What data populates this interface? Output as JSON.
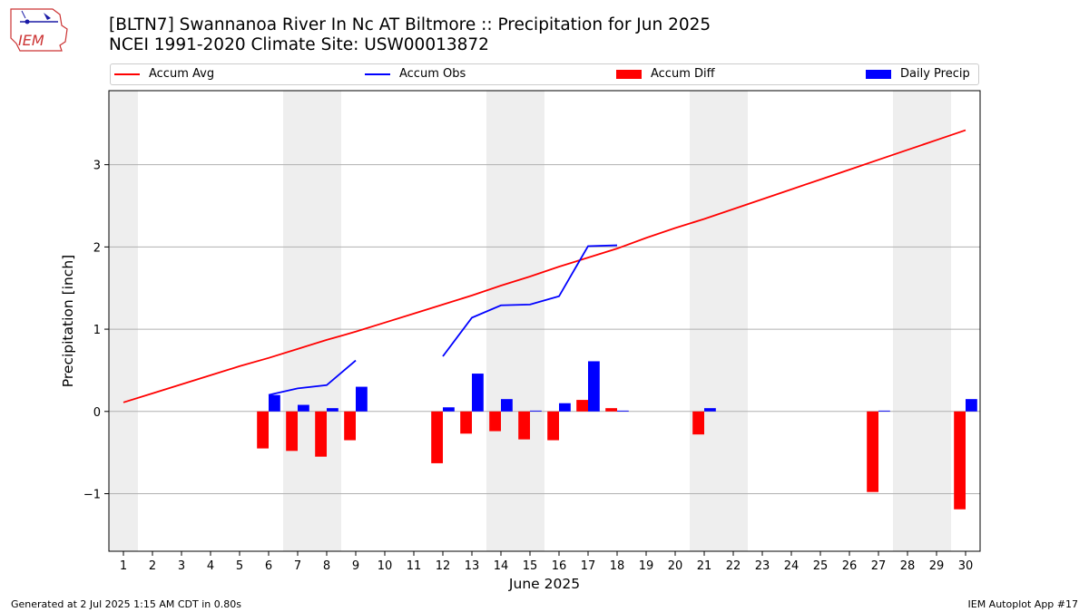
{
  "header": {
    "title_line1": "[BLTN7] Swannanoa River In Nc  AT Biltmore :: Precipitation for Jun 2025",
    "title_line2": "NCEI 1991-2020 Climate Site: USW00013872",
    "logo_text": "IEM"
  },
  "legend": {
    "items": [
      {
        "label": "Accum Avg",
        "color": "#ff0000",
        "kind": "line"
      },
      {
        "label": "Accum Obs",
        "color": "#0000ff",
        "kind": "line"
      },
      {
        "label": "Accum Diff",
        "color": "#ff0000",
        "kind": "bar"
      },
      {
        "label": "Daily Precip",
        "color": "#0000ff",
        "kind": "bar"
      }
    ]
  },
  "footer": {
    "left": "Generated at 2 Jul 2025 1:15 AM CDT in 0.80s",
    "right": "IEM Autoplot App #17"
  },
  "chart_data": {
    "type": "bar",
    "xlabel": "June 2025",
    "ylabel": "Precipitation [inch]",
    "xlim": [
      0.5,
      30.5
    ],
    "ylim": [
      -1.7,
      3.9
    ],
    "yticks": [
      -1,
      0,
      1,
      2,
      3
    ],
    "ytick_labels": [
      "−1",
      "0",
      "1",
      "2",
      "3"
    ],
    "days": [
      1,
      2,
      3,
      4,
      5,
      6,
      7,
      8,
      9,
      10,
      11,
      12,
      13,
      14,
      15,
      16,
      17,
      18,
      19,
      20,
      21,
      22,
      23,
      24,
      25,
      26,
      27,
      28,
      29,
      30
    ],
    "weekend_bands": [
      [
        0.5,
        1.5
      ],
      [
        6.5,
        8.5
      ],
      [
        13.5,
        15.5
      ],
      [
        20.5,
        22.5
      ],
      [
        27.5,
        29.5
      ]
    ],
    "grid": true,
    "series": [
      {
        "name": "Accum Avg",
        "type": "line",
        "color": "#ff0000",
        "x": [
          1,
          2,
          3,
          4,
          5,
          6,
          7,
          8,
          9,
          10,
          11,
          12,
          13,
          14,
          15,
          16,
          17,
          18,
          19,
          20,
          21,
          22,
          23,
          24,
          25,
          26,
          27,
          28,
          29,
          30
        ],
        "y": [
          0.11,
          0.22,
          0.33,
          0.44,
          0.55,
          0.65,
          0.76,
          0.87,
          0.97,
          1.08,
          1.19,
          1.3,
          1.41,
          1.53,
          1.64,
          1.76,
          1.87,
          1.98,
          2.11,
          2.23,
          2.34,
          2.46,
          2.58,
          2.7,
          2.82,
          2.94,
          3.06,
          3.18,
          3.3,
          3.42
        ]
      },
      {
        "name": "Accum Obs",
        "type": "line",
        "color": "#0000ff",
        "segments": [
          {
            "x": [
              6,
              7,
              8,
              9
            ],
            "y": [
              0.2,
              0.28,
              0.32,
              0.62
            ]
          },
          {
            "x": [
              12,
              13,
              14,
              15,
              16,
              17,
              18
            ],
            "y": [
              0.67,
              1.14,
              1.29,
              1.3,
              1.4,
              2.01,
              2.02
            ]
          }
        ]
      },
      {
        "name": "Accum Diff",
        "type": "bar",
        "color": "#ff0000",
        "x": [
          6,
          7,
          8,
          9,
          12,
          13,
          14,
          15,
          16,
          17,
          18,
          21,
          27,
          30
        ],
        "y": [
          -0.45,
          -0.48,
          -0.55,
          -0.35,
          -0.63,
          -0.27,
          -0.24,
          -0.34,
          -0.35,
          0.14,
          0.04,
          -0.28,
          -0.98,
          -1.19
        ]
      },
      {
        "name": "Daily Precip",
        "type": "bar",
        "color": "#0000ff",
        "x": [
          6,
          7,
          8,
          9,
          12,
          13,
          14,
          15,
          16,
          17,
          18,
          21,
          27,
          30
        ],
        "y": [
          0.2,
          0.08,
          0.04,
          0.3,
          0.05,
          0.46,
          0.15,
          0.01,
          0.1,
          0.61,
          0.01,
          0.04,
          0.01,
          0.15
        ]
      }
    ]
  }
}
